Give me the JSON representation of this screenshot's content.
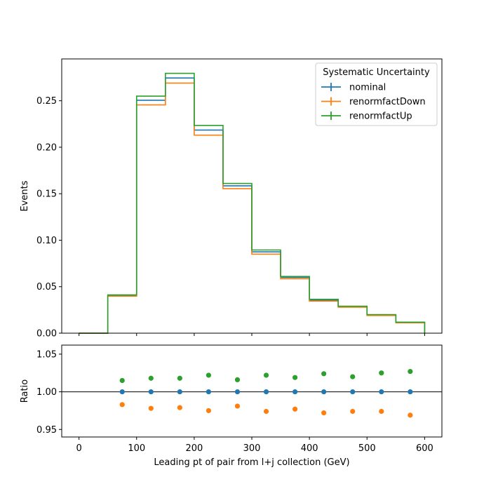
{
  "chart_data": [
    {
      "type": "line",
      "style": "step histogram with error bars",
      "ylabel": "Events",
      "xlim": [
        -30,
        630
      ],
      "ylim": [
        0,
        0.295
      ],
      "xticks": [
        0,
        100,
        200,
        300,
        400,
        500,
        600
      ],
      "yticks": [
        0.0,
        0.05,
        0.1,
        0.15,
        0.2,
        0.25
      ],
      "ytick_labels": [
        "0.00",
        "0.05",
        "0.10",
        "0.15",
        "0.20",
        "0.25"
      ],
      "bin_edges": [
        0,
        50,
        100,
        150,
        200,
        250,
        300,
        350,
        400,
        450,
        500,
        550,
        600
      ],
      "legend": {
        "title": "Systematic Uncertainty",
        "placement": "top-right"
      },
      "series": [
        {
          "name": "nominal",
          "color": "#1f77b4",
          "values": [
            0.0,
            0.0405,
            0.2505,
            0.2745,
            0.2185,
            0.1585,
            0.0875,
            0.06,
            0.0355,
            0.0285,
            0.0195,
            0.0115
          ]
        },
        {
          "name": "renormfactDown",
          "color": "#ff7f0e",
          "values": [
            0.0,
            0.0398,
            0.2455,
            0.269,
            0.213,
            0.1555,
            0.085,
            0.0585,
            0.0345,
            0.028,
            0.019,
            0.0112
          ]
        },
        {
          "name": "renormfactUp",
          "color": "#2ca02c",
          "values": [
            0.0,
            0.0412,
            0.255,
            0.2795,
            0.2235,
            0.161,
            0.0895,
            0.061,
            0.0365,
            0.029,
            0.02,
            0.0118
          ]
        }
      ]
    },
    {
      "type": "scatter",
      "xlabel": "Leading pt of pair from l+j collection (GeV)",
      "ylabel": "Ratio",
      "xlim": [
        -30,
        630
      ],
      "ylim": [
        0.94,
        1.062
      ],
      "xticks": [
        0,
        100,
        200,
        300,
        400,
        500,
        600
      ],
      "yticks": [
        0.95,
        1.0,
        1.05
      ],
      "ytick_labels": [
        "0.95",
        "1.00",
        "1.05"
      ],
      "reference_line": 1.0,
      "x": [
        75,
        125,
        175,
        225,
        275,
        325,
        375,
        425,
        475,
        525,
        575
      ],
      "series": [
        {
          "name": "nominal",
          "color": "#1f77b4",
          "values": [
            1.0,
            1.0,
            1.0,
            1.0,
            1.0,
            1.0,
            1.0,
            1.0,
            1.0,
            1.0,
            1.0
          ]
        },
        {
          "name": "renormfactDown",
          "color": "#ff7f0e",
          "values": [
            0.983,
            0.978,
            0.979,
            0.975,
            0.981,
            0.974,
            0.977,
            0.972,
            0.974,
            0.974,
            0.969
          ]
        },
        {
          "name": "renormfactUp",
          "color": "#2ca02c",
          "values": [
            1.015,
            1.018,
            1.018,
            1.022,
            1.016,
            1.022,
            1.019,
            1.024,
            1.02,
            1.025,
            1.027
          ]
        }
      ]
    }
  ]
}
